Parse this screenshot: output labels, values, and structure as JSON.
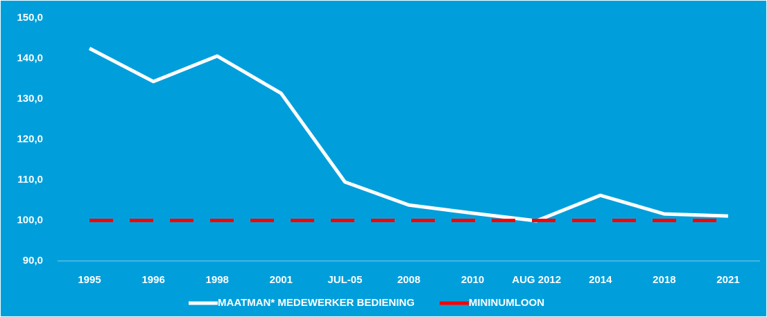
{
  "chart_data": {
    "type": "line",
    "categories": [
      "1995",
      "1996",
      "1998",
      "2001",
      "JUL-05",
      "2008",
      "2010",
      "AUG 2012",
      "2014",
      "2018",
      "2021"
    ],
    "series": [
      {
        "name": "MAATMAN* MEDEWERKER BEDIENING",
        "color": "#ffffff",
        "dash": false,
        "values": [
          142.5,
          134.3,
          140.6,
          131.4,
          109.5,
          103.8,
          101.8,
          99.9,
          106.2,
          101.6,
          101.1
        ]
      },
      {
        "name": "MININUMLOON",
        "color": "#ff0000",
        "dash": true,
        "values": [
          100,
          100,
          100,
          100,
          100,
          100,
          100,
          100,
          100,
          100,
          100
        ]
      }
    ],
    "ylim": [
      90,
      150
    ],
    "yticks": [
      {
        "value": 90,
        "label": "90,0"
      },
      {
        "value": 100,
        "label": "100,0"
      },
      {
        "value": 110,
        "label": "110,0"
      },
      {
        "value": 120,
        "label": "120,0"
      },
      {
        "value": 130,
        "label": "130,0"
      },
      {
        "value": 140,
        "label": "140,0"
      },
      {
        "value": 150,
        "label": "150,0"
      }
    ],
    "grid": false,
    "legend": "bottom"
  }
}
